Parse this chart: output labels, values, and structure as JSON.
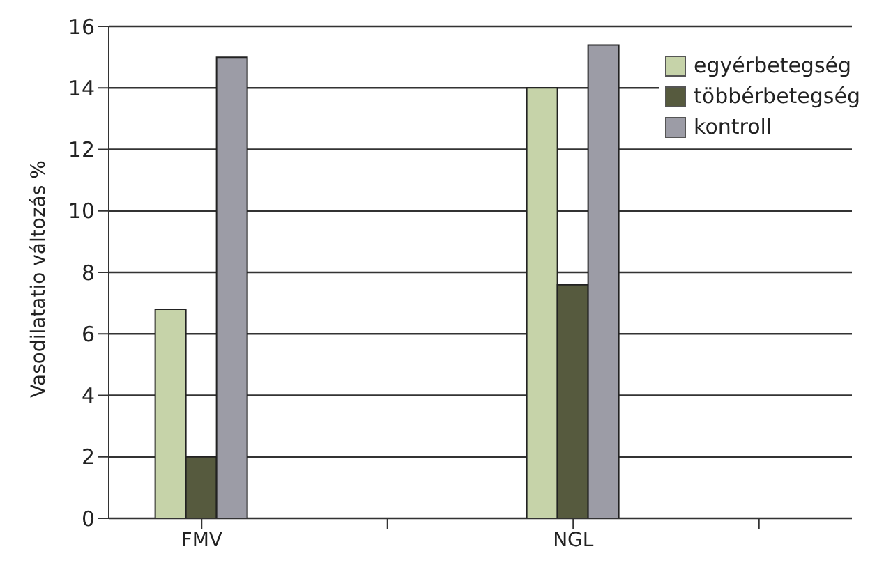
{
  "chart_data": {
    "type": "bar",
    "ylabel": "Vasodilatatio változás %",
    "categories": [
      "FMV",
      null,
      "NGL",
      null
    ],
    "series": [
      {
        "name": "egyérbetegség",
        "color": "#c6d3a9",
        "values": [
          6.8,
          null,
          14,
          null
        ]
      },
      {
        "name": "többérbetegség",
        "color": "#565a3e",
        "values": [
          2,
          null,
          7.6,
          null
        ]
      },
      {
        "name": "kontroll",
        "color": "#9c9ca6",
        "values": [
          15,
          null,
          15.4,
          null
        ]
      }
    ],
    "ylim": [
      0,
      16
    ],
    "yticks": [
      0,
      2,
      4,
      6,
      8,
      10,
      12,
      14,
      16
    ],
    "grid": "y",
    "legend": "top right"
  }
}
